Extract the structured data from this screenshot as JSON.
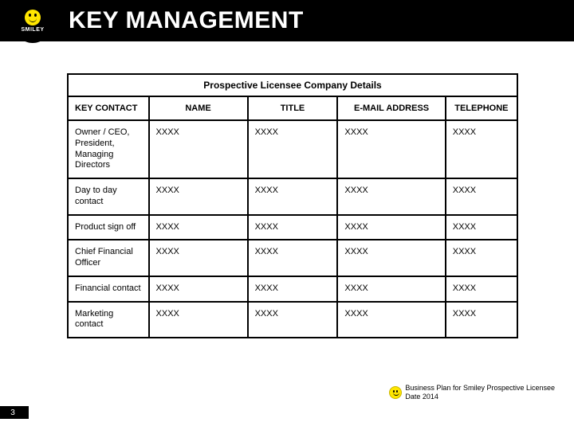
{
  "header": {
    "title": "KEY MANAGEMENT",
    "logo_text": "SMILEY",
    "logo_face_color": "#ffe600",
    "bar_color": "#000000",
    "title_color": "#ffffff"
  },
  "table": {
    "title": "Prospective Licensee Company Details",
    "columns": [
      {
        "label": "KEY CONTACT",
        "width_pct": 18,
        "align": "left"
      },
      {
        "label": "NAME",
        "width_pct": 22,
        "align": "center"
      },
      {
        "label": "TITLE",
        "width_pct": 20,
        "align": "center"
      },
      {
        "label": "E-MAIL ADDRESS",
        "width_pct": 24,
        "align": "center"
      },
      {
        "label": "TELEPHONE",
        "width_pct": 16,
        "align": "center"
      }
    ],
    "rows": [
      {
        "contact": "Owner / CEO, President, Managing Directors",
        "name": "XXXX",
        "title": "XXXX",
        "email": "XXXX",
        "tel": "XXXX"
      },
      {
        "contact": "Day to day contact",
        "name": "XXXX",
        "title": "XXXX",
        "email": "XXXX",
        "tel": "XXXX"
      },
      {
        "contact": "Product sign off",
        "name": "XXXX",
        "title": "XXXX",
        "email": "XXXX",
        "tel": "XXXX"
      },
      {
        "contact": "Chief Financial Officer",
        "name": "XXXX",
        "title": "XXXX",
        "email": "XXXX",
        "tel": "XXXX"
      },
      {
        "contact": "Financial contact",
        "name": "XXXX",
        "title": "XXXX",
        "email": "XXXX",
        "tel": "XXXX"
      },
      {
        "contact": "Marketing contact",
        "name": "XXXX",
        "title": "XXXX",
        "email": "XXXX",
        "tel": "XXXX"
      }
    ],
    "border_color": "#000000",
    "cell_font_size": 11,
    "title_font_size": 12
  },
  "footer": {
    "line1": "Business Plan for Smiley Prospective Licensee",
    "line2": "Date 2014",
    "smiley_color": "#ffe600"
  },
  "page_number": "3",
  "page_bg": "#ffffff"
}
